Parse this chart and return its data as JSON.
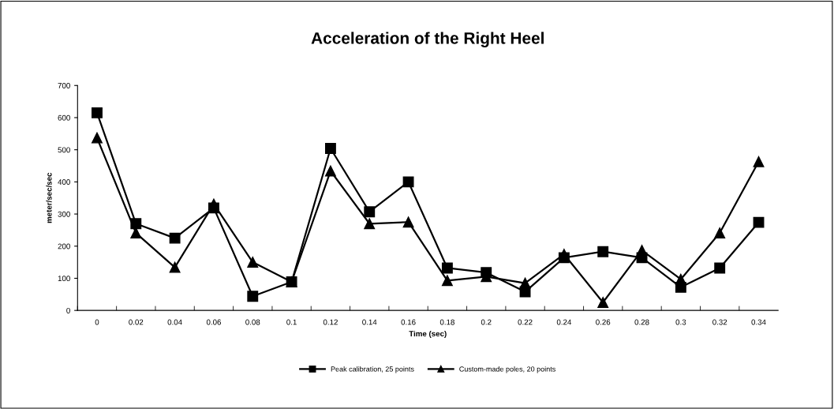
{
  "chart_data": {
    "type": "line",
    "title": "Acceleration of the Right Heel",
    "xlabel": "Time (sec)",
    "ylabel": "meter/sec/sec",
    "categories": [
      "0",
      "0.02",
      "0.04",
      "0.06",
      "0.08",
      "0.1",
      "0.12",
      "0.14",
      "0.16",
      "0.18",
      "0.2",
      "0.22",
      "0.24",
      "0.26",
      "0.28",
      "0.3",
      "0.32",
      "0.34"
    ],
    "series": [
      {
        "name": "Peak calibration, 25 points",
        "color": "#000000",
        "marker": "square",
        "values": [
          615,
          270,
          225,
          319,
          44,
          89,
          504,
          307,
          400,
          132,
          118,
          58,
          164,
          183,
          164,
          72,
          132,
          274
        ]
      },
      {
        "name": "Custom-made poles, 20 points",
        "color": "#000000",
        "marker": "triangle",
        "values": [
          537,
          241,
          134,
          331,
          150,
          89,
          434,
          270,
          275,
          93,
          105,
          85,
          175,
          25,
          187,
          97,
          241,
          463
        ]
      }
    ],
    "ylim": [
      0,
      700
    ],
    "yticks": [
      0,
      100,
      200,
      300,
      400,
      500,
      600,
      700
    ],
    "grid": false,
    "legend": "bottom",
    "line_style": "solid"
  }
}
